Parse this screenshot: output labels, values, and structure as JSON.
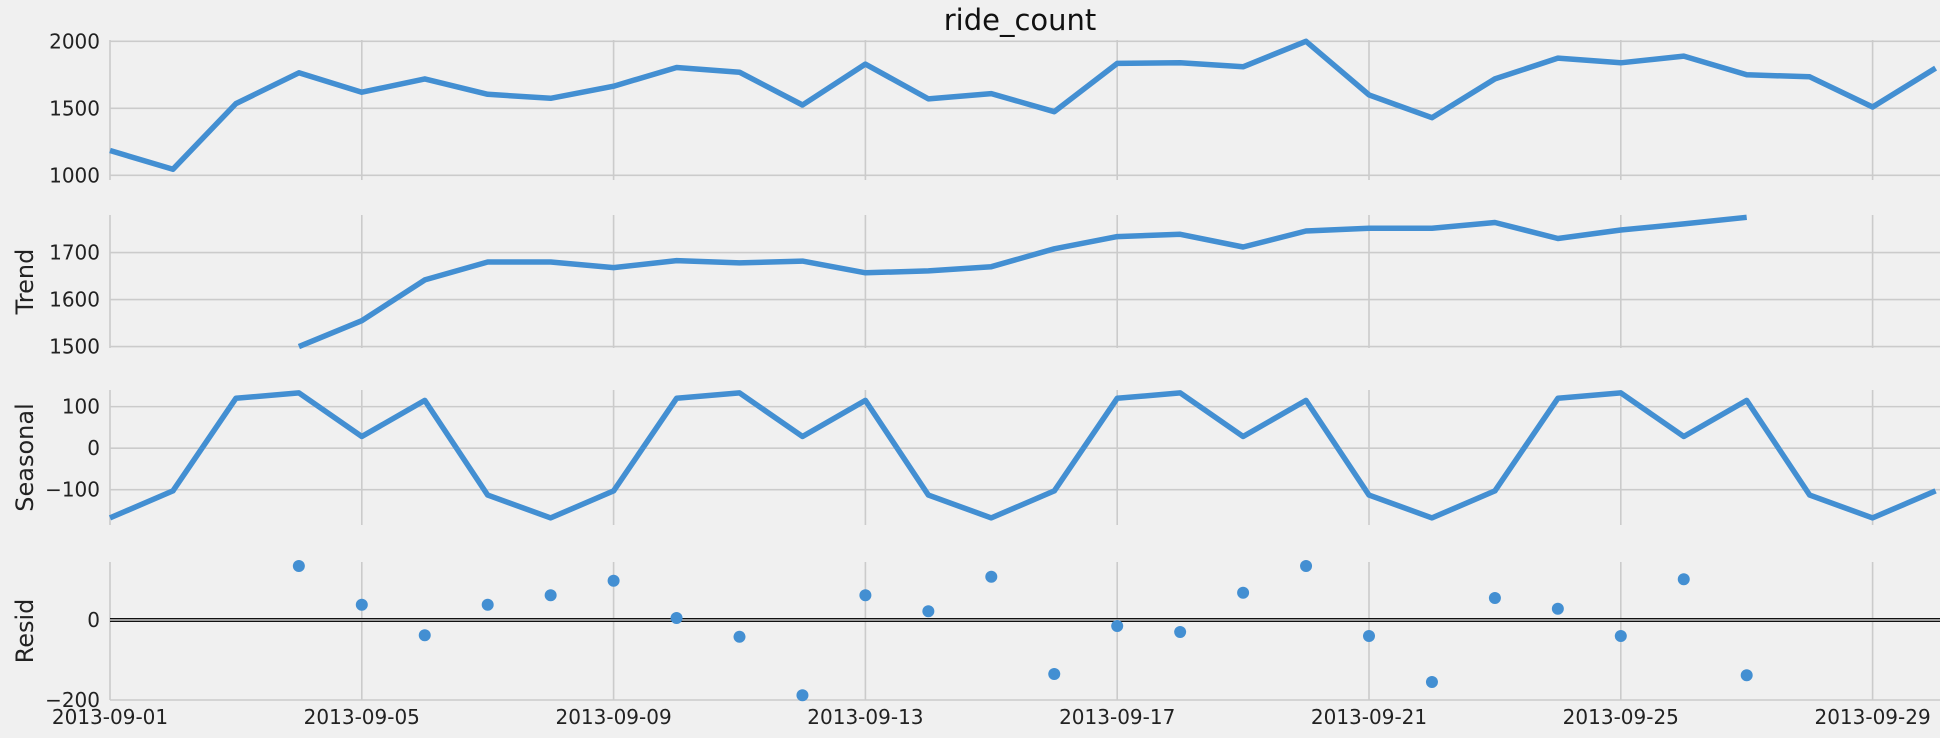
{
  "chart_data": {
    "type": "line",
    "title": "ride_count",
    "x_dates": [
      "2013-09-01",
      "2013-09-02",
      "2013-09-03",
      "2013-09-04",
      "2013-09-05",
      "2013-09-06",
      "2013-09-07",
      "2013-09-08",
      "2013-09-09",
      "2013-09-10",
      "2013-09-11",
      "2013-09-12",
      "2013-09-13",
      "2013-09-14",
      "2013-09-15",
      "2013-09-16",
      "2013-09-17",
      "2013-09-18",
      "2013-09-19",
      "2013-09-20",
      "2013-09-21",
      "2013-09-22",
      "2013-09-23",
      "2013-09-24",
      "2013-09-25",
      "2013-09-26",
      "2013-09-27",
      "2013-09-28",
      "2013-09-29",
      "2013-09-30"
    ],
    "x_tick_labels": [
      "2013-09-01",
      "2013-09-05",
      "2013-09-09",
      "2013-09-13",
      "2013-09-17",
      "2013-09-21",
      "2013-09-25",
      "2013-09-29"
    ],
    "grid": true,
    "line_color": "#438fd2",
    "panels": [
      {
        "ylabel": "",
        "kind": "line",
        "ylim": [
          965,
          2010
        ],
        "yticks": [
          1000,
          1500,
          2000
        ],
        "values": [
          1185,
          1045,
          1535,
          1765,
          1620,
          1720,
          1605,
          1575,
          1665,
          1805,
          1770,
          1525,
          1830,
          1570,
          1610,
          1475,
          1835,
          1840,
          1810,
          2000,
          1600,
          1430,
          1720,
          1875,
          1840,
          1890,
          1750,
          1735,
          1510,
          1800
        ]
      },
      {
        "ylabel": "Trend",
        "kind": "line",
        "ylim": [
          1497,
          1780
        ],
        "yticks": [
          1500,
          1600,
          1700
        ],
        "values": [
          null,
          null,
          null,
          1500,
          1555,
          1642,
          1680,
          1680,
          1668,
          1683,
          1678,
          1682,
          1657,
          1661,
          1670,
          1708,
          1734,
          1739,
          1712,
          1746,
          1752,
          1752,
          1764,
          1730,
          1748,
          1761,
          1775,
          null,
          null,
          null
        ]
      },
      {
        "ylabel": "Seasonal",
        "kind": "line",
        "ylim": [
          -185,
          140
        ],
        "yticks": [
          -100,
          0,
          100
        ],
        "yticklabels": [
          "−100",
          "0",
          "100"
        ],
        "values": [
          -168,
          -103,
          120,
          133,
          28,
          115,
          -113,
          -168,
          -103,
          120,
          133,
          28,
          115,
          -113,
          -168,
          -103,
          120,
          133,
          28,
          115,
          -113,
          -168,
          -103,
          120,
          133,
          28,
          115,
          -113,
          -168,
          -103
        ]
      },
      {
        "ylabel": "Resid",
        "kind": "scatter",
        "ylim": [
          -200,
          145
        ],
        "yticks": [
          -200,
          0
        ],
        "yticklabels": [
          "−200",
          "0"
        ],
        "zero_line": true,
        "values": [
          null,
          null,
          null,
          135,
          38,
          -38,
          38,
          62,
          98,
          5,
          -42,
          -188,
          62,
          22,
          108,
          -135,
          -15,
          -30,
          68,
          135,
          -40,
          -155,
          55,
          28,
          -40,
          102,
          -138,
          null,
          null,
          null
        ]
      }
    ]
  }
}
